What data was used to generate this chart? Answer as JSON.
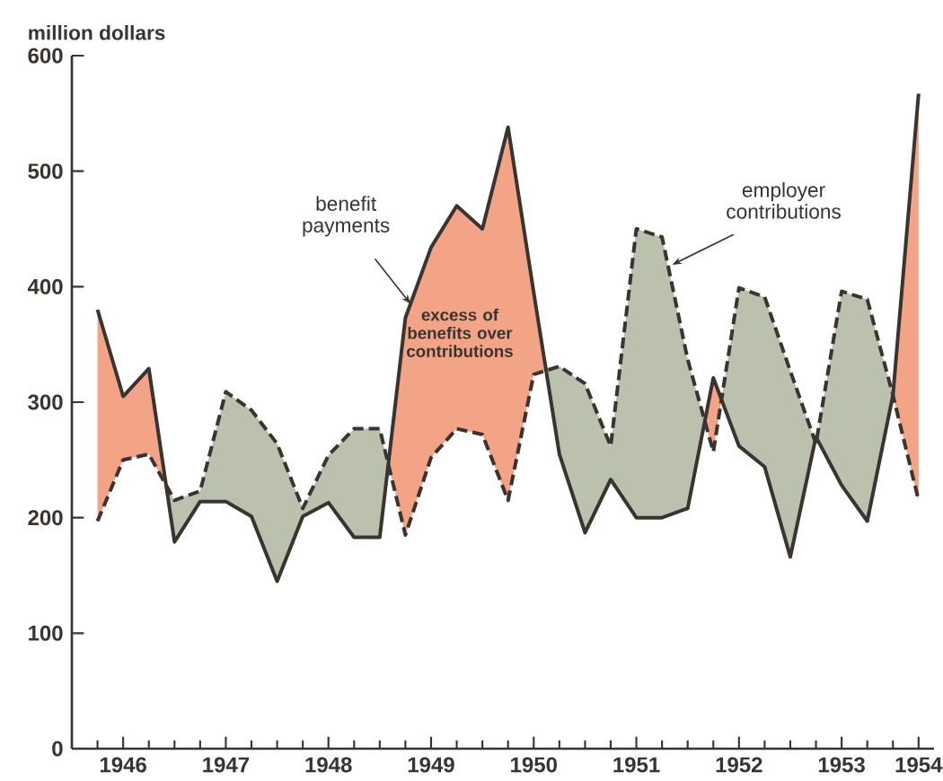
{
  "chart_data": {
    "type": "line",
    "ylabel": "million dollars",
    "x": [
      1946.25,
      1946.5,
      1946.75,
      1947.0,
      1947.25,
      1947.5,
      1947.75,
      1948.0,
      1948.25,
      1948.5,
      1948.75,
      1949.0,
      1949.25,
      1949.5,
      1949.75,
      1950.0,
      1950.25,
      1950.5,
      1950.75,
      1951.0,
      1951.25,
      1951.5,
      1951.75,
      1952.0,
      1952.25,
      1952.5,
      1952.75,
      1953.0,
      1953.25,
      1953.5,
      1953.75,
      1954.0,
      1954.25
    ],
    "series": [
      {
        "color": "#3a3430",
        "line_style": "solid",
        "values": [
          380,
          305,
          329,
          179,
          214,
          214,
          201,
          145,
          201,
          213,
          183,
          183,
          373,
          434,
          470,
          450,
          538,
          395,
          255,
          187,
          233,
          200,
          200,
          208,
          321,
          262,
          244,
          166,
          270,
          228,
          197,
          306,
          567
        ]
      },
      {
        "color": "#3a3430",
        "line_style": "dashed",
        "values": [
          197,
          250,
          255,
          215,
          223,
          309,
          293,
          264,
          208,
          254,
          277,
          277,
          185,
          252,
          277,
          272,
          215,
          324,
          331,
          316,
          262,
          450,
          443,
          337,
          257,
          399,
          391,
          327,
          264,
          396,
          389,
          306,
          215
        ]
      }
    ],
    "xlim": [
      1946,
      1954.4
    ],
    "ylim": [
      0,
      600
    ],
    "yticks": [
      0,
      100,
      200,
      300,
      400,
      500,
      600
    ],
    "xticks": [
      {
        "value": 1946.25,
        "label": null
      },
      {
        "value": 1946.5,
        "label": "1946"
      },
      {
        "value": 1946.75,
        "label": null
      },
      {
        "value": 1947,
        "label": null
      },
      {
        "value": 1947.25,
        "label": null
      },
      {
        "value": 1947.5,
        "label": "1947"
      },
      {
        "value": 1947.75,
        "label": null
      },
      {
        "value": 1948,
        "label": null
      },
      {
        "value": 1948.25,
        "label": null
      },
      {
        "value": 1948.5,
        "label": "1948"
      },
      {
        "value": 1948.75,
        "label": null
      },
      {
        "value": 1949,
        "label": null
      },
      {
        "value": 1949.25,
        "label": null
      },
      {
        "value": 1949.5,
        "label": "1949"
      },
      {
        "value": 1949.75,
        "label": null
      },
      {
        "value": 1950,
        "label": null
      },
      {
        "value": 1950.25,
        "label": null
      },
      {
        "value": 1950.5,
        "label": "1950"
      },
      {
        "value": 1950.75,
        "label": null
      },
      {
        "value": 1951,
        "label": null
      },
      {
        "value": 1951.25,
        "label": null
      },
      {
        "value": 1951.5,
        "label": "1951"
      },
      {
        "value": 1951.75,
        "label": null
      },
      {
        "value": 1952,
        "label": null
      },
      {
        "value": 1952.25,
        "label": null
      },
      {
        "value": 1952.5,
        "label": "1952"
      },
      {
        "value": 1952.75,
        "label": null
      },
      {
        "value": 1953,
        "label": null
      },
      {
        "value": 1953.25,
        "label": null
      },
      {
        "value": 1953.5,
        "label": "1953"
      },
      {
        "value": 1953.75,
        "label": null
      },
      {
        "value": 1954,
        "label": null
      },
      {
        "value": 1954.25,
        "label": "1954"
      }
    ],
    "annotations": [
      {
        "text": "benefit payments",
        "x": 1949.3,
        "y": 385
      },
      "excess of benefits over contributions",
      {
        "text": "employer contributions",
        "x": 1951.85,
        "y": 419
      }
    ]
  }
}
